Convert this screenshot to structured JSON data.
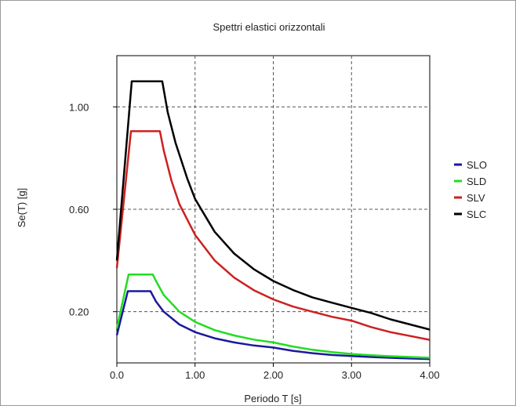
{
  "chart_data": {
    "type": "line",
    "title": "Spettri elastici orizzontali",
    "xlabel": "Periodo T [s]",
    "ylabel": "Se(T) [g]",
    "xlim": [
      0,
      4.0
    ],
    "ylim": [
      0,
      1.2
    ],
    "xticks": [
      0.0,
      1.0,
      2.0,
      3.0,
      4.0
    ],
    "xtick_labels": [
      "0.0",
      "1.00",
      "2.00",
      "3.00",
      "4.00"
    ],
    "yticks": [
      0.2,
      0.6,
      1.0
    ],
    "ytick_labels": [
      "0.20",
      "0.60",
      "1.00"
    ],
    "grid": true,
    "legend_position": "right",
    "series": [
      {
        "name": "SLO",
        "color": "#1a1a9c",
        "x": [
          0.0,
          0.14,
          0.43,
          0.5,
          0.6,
          0.8,
          1.0,
          1.25,
          1.5,
          1.75,
          2.0,
          2.25,
          2.5,
          2.75,
          3.0,
          3.25,
          3.5,
          3.75,
          4.0
        ],
        "y": [
          0.108,
          0.28,
          0.28,
          0.24,
          0.2,
          0.15,
          0.12,
          0.096,
          0.08,
          0.068,
          0.06,
          0.047,
          0.038,
          0.031,
          0.027,
          0.023,
          0.02,
          0.017,
          0.015
        ]
      },
      {
        "name": "SLD",
        "color": "#22dd22",
        "x": [
          0.0,
          0.15,
          0.46,
          0.5,
          0.6,
          0.8,
          1.0,
          1.25,
          1.5,
          1.75,
          2.0,
          2.25,
          2.5,
          2.75,
          3.0,
          3.25,
          3.5,
          3.75,
          4.0
        ],
        "y": [
          0.135,
          0.345,
          0.345,
          0.32,
          0.265,
          0.2,
          0.16,
          0.128,
          0.107,
          0.091,
          0.08,
          0.064,
          0.051,
          0.042,
          0.035,
          0.03,
          0.026,
          0.023,
          0.02
        ]
      },
      {
        "name": "SLV",
        "color": "#cc2020",
        "x": [
          0.0,
          0.18,
          0.55,
          0.6,
          0.7,
          0.8,
          1.0,
          1.25,
          1.5,
          1.75,
          2.0,
          2.25,
          2.5,
          2.75,
          3.0,
          3.25,
          3.5,
          3.75,
          4.0
        ],
        "y": [
          0.37,
          0.905,
          0.905,
          0.83,
          0.71,
          0.62,
          0.5,
          0.4,
          0.333,
          0.284,
          0.248,
          0.22,
          0.2,
          0.18,
          0.165,
          0.14,
          0.12,
          0.105,
          0.09
        ]
      },
      {
        "name": "SLC",
        "color": "#000000",
        "x": [
          0.0,
          0.19,
          0.58,
          0.65,
          0.75,
          0.9,
          1.0,
          1.25,
          1.5,
          1.75,
          2.0,
          2.25,
          2.5,
          2.75,
          3.0,
          3.25,
          3.5,
          3.75,
          4.0
        ],
        "y": [
          0.4,
          1.1,
          1.1,
          0.98,
          0.86,
          0.72,
          0.64,
          0.512,
          0.427,
          0.366,
          0.32,
          0.285,
          0.256,
          0.235,
          0.215,
          0.195,
          0.17,
          0.15,
          0.13
        ]
      }
    ]
  }
}
